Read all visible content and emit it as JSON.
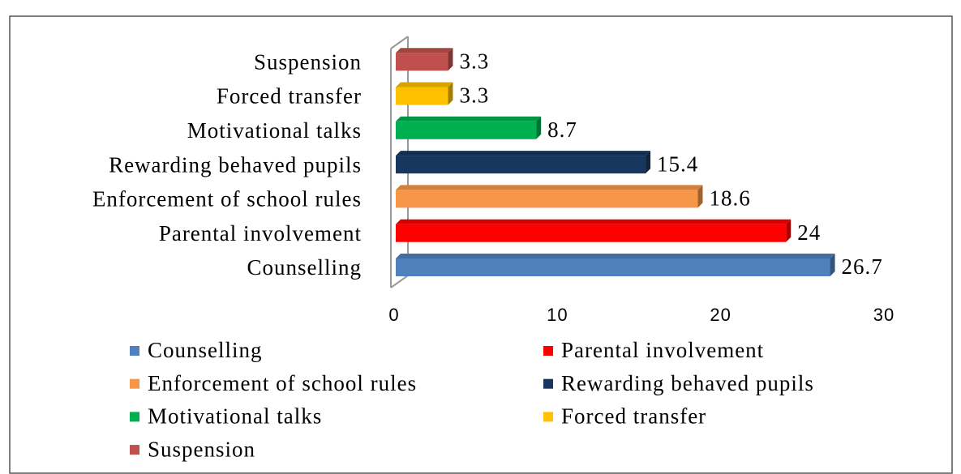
{
  "chart_data": {
    "type": "bar",
    "orientation": "horizontal",
    "categories": [
      "Counselling",
      "Parental involvement",
      "Enforcement of school rules",
      "Rewarding behaved pupils",
      "Motivational talks",
      "Forced transfer",
      "Suspension"
    ],
    "values": [
      26.7,
      24,
      18.6,
      15.4,
      8.7,
      3.3,
      3.3
    ],
    "colors": [
      "#4f81bd",
      "#ff0000",
      "#f79646",
      "#17375e",
      "#00b050",
      "#ffc000",
      "#c0504d"
    ],
    "xlim": [
      0,
      30
    ],
    "xticks": [
      0,
      10,
      20,
      30
    ],
    "legend": "bottom"
  }
}
